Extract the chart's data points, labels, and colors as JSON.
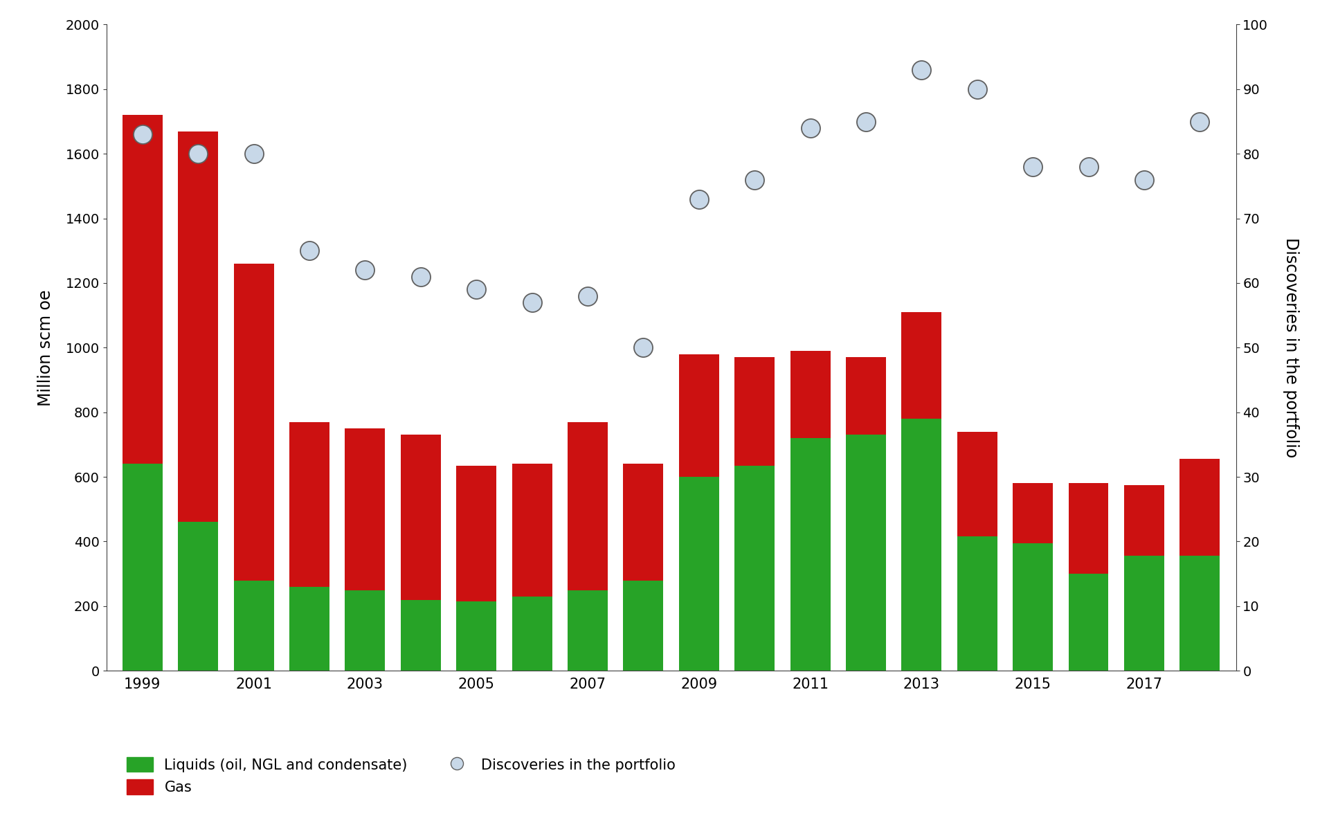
{
  "years": [
    1999,
    2000,
    2001,
    2002,
    2003,
    2004,
    2005,
    2006,
    2007,
    2008,
    2009,
    2010,
    2011,
    2012,
    2013,
    2014,
    2015,
    2016,
    2017,
    2018
  ],
  "liquids": [
    640,
    460,
    280,
    260,
    250,
    220,
    215,
    230,
    250,
    280,
    600,
    635,
    720,
    730,
    780,
    415,
    395,
    300,
    355,
    355
  ],
  "gas": [
    1080,
    1210,
    980,
    510,
    500,
    510,
    420,
    410,
    520,
    360,
    380,
    335,
    270,
    240,
    330,
    325,
    185,
    280,
    220,
    300
  ],
  "discoveries": [
    83,
    80,
    80,
    65,
    62,
    61,
    59,
    57,
    58,
    50,
    73,
    76,
    84,
    85,
    93,
    90,
    78,
    78,
    76,
    85
  ],
  "liquids_color": "#27a327",
  "gas_color": "#cc1111",
  "discoveries_facecolor": "#c8d8e8",
  "discoveries_edgecolor": "#606060",
  "background_color": "#ffffff",
  "ylabel_left": "Million scm oe",
  "ylabel_right": "Discoveries in the portfolio",
  "ylim_left": [
    0,
    2000
  ],
  "ylim_right": [
    0,
    100
  ],
  "yticks_left": [
    0,
    200,
    400,
    600,
    800,
    1000,
    1200,
    1400,
    1600,
    1800,
    2000
  ],
  "yticks_right": [
    0,
    10,
    20,
    30,
    40,
    50,
    60,
    70,
    80,
    90,
    100
  ],
  "xtick_labels": [
    "1999",
    "",
    "2001",
    "",
    "2003",
    "",
    "2005",
    "",
    "2007",
    "",
    "2009",
    "",
    "2011",
    "",
    "2013",
    "",
    "2015",
    "",
    "2017",
    ""
  ],
  "legend_labels": [
    "Liquids (oil, NGL and condensate)",
    "Gas",
    "Discoveries in the portfolio"
  ],
  "bar_width": 0.72
}
